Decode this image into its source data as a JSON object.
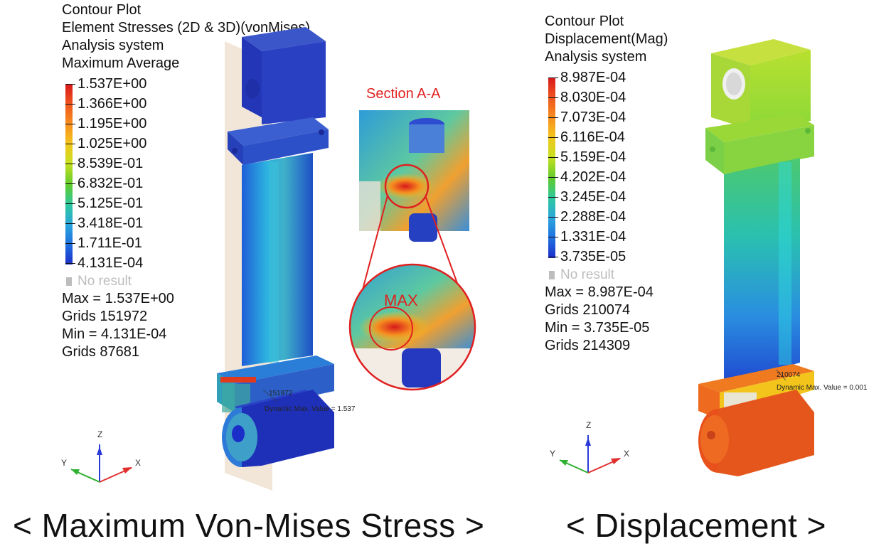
{
  "left": {
    "legend": {
      "lines": [
        "Contour Plot",
        "Element Stresses (2D & 3D)(vonMises)",
        "Analysis system",
        "Maximum Average"
      ],
      "ticks": [
        "1.537E+00",
        "1.366E+00",
        "1.195E+00",
        "1.025E+00",
        "8.539E-01",
        "6.832E-01",
        "5.125E-01",
        "3.418E-01",
        "1.711E-01",
        "4.131E-04"
      ],
      "no_result": "No result",
      "stats": [
        "Max = 1.537E+00",
        "Grids 151972",
        "Min = 4.131E-04",
        "Grids 87681"
      ]
    },
    "section_label": "Section A-A",
    "max_label": "MAX",
    "probe": {
      "id": "151972",
      "text": "Dynamic Max. Value = ",
      "value": "1.537"
    },
    "axes": {
      "z": "Z",
      "y": "Y",
      "x": "X"
    },
    "caption": "< Maximum Von-Mises Stress >"
  },
  "right": {
    "legend": {
      "lines": [
        "Contour Plot",
        "Displacement(Mag)",
        "Analysis system"
      ],
      "ticks": [
        "8.987E-04",
        "8.030E-04",
        "7.073E-04",
        "6.116E-04",
        "5.159E-04",
        "4.202E-04",
        "3.245E-04",
        "2.288E-04",
        "1.331E-04",
        "3.735E-05"
      ],
      "no_result": "No result",
      "stats": [
        "Max = 8.987E-04",
        "Grids 210074",
        "Min = 3.735E-05",
        "Grids 214309"
      ]
    },
    "probe": {
      "id": "210074",
      "text": "Dynamic Max. Value = ",
      "value": "0.001"
    },
    "axes": {
      "z": "Z",
      "y": "Y",
      "x": "X"
    },
    "caption": "< Displacement >"
  },
  "colors": {
    "scale": [
      "#d7191c",
      "#f0541e",
      "#f68e1f",
      "#f3c51c",
      "#c7e01f",
      "#5ecb2e",
      "#2ec8a0",
      "#2aa5dc",
      "#1f6fe0",
      "#1c2ec8"
    ],
    "accent_red": "#e02020",
    "plane": "#f1e6d8"
  }
}
